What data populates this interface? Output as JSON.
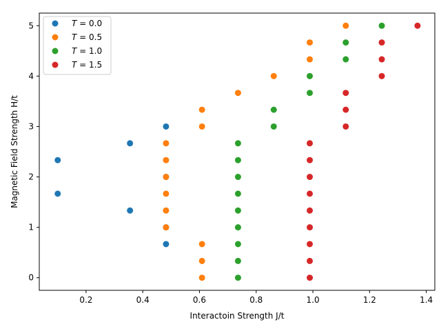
{
  "chart_data": {
    "type": "scatter",
    "title": "",
    "xlabel": "Interactoin Strength J/t",
    "ylabel": "Magnetic Field Strength H/t",
    "xlim": [
      0.035,
      1.43
    ],
    "ylim": [
      -0.25,
      5.25
    ],
    "xticks": [
      0.2,
      0.4,
      0.6,
      0.8,
      1.0,
      1.2,
      1.4
    ],
    "xtick_labels": [
      "0.2",
      "0.4",
      "0.6",
      "0.8",
      "1.0",
      "1.2",
      "1.4"
    ],
    "yticks": [
      0,
      1,
      2,
      3,
      4,
      5
    ],
    "ytick_labels": [
      "0",
      "1",
      "2",
      "3",
      "4",
      "5"
    ],
    "grid": false,
    "legend_position": "top-left",
    "series": [
      {
        "name": "T = 0.0",
        "legend_var": "T",
        "legend_value": " = 0.0",
        "color": "#1f77b4",
        "points": [
          [
            0.1,
            1.667
          ],
          [
            0.1,
            2.333
          ],
          [
            0.355,
            1.333
          ],
          [
            0.355,
            2.667
          ],
          [
            0.482,
            0.667
          ],
          [
            0.482,
            1.0
          ],
          [
            0.482,
            2.0
          ],
          [
            0.482,
            3.0
          ]
        ]
      },
      {
        "name": "T = 0.5",
        "legend_var": "T",
        "legend_value": " = 0.5",
        "color": "#ff7f0e",
        "points": [
          [
            0.482,
            1.0
          ],
          [
            0.482,
            1.333
          ],
          [
            0.482,
            1.667
          ],
          [
            0.482,
            2.0
          ],
          [
            0.482,
            2.333
          ],
          [
            0.482,
            2.667
          ],
          [
            0.609,
            0.0
          ],
          [
            0.609,
            0.333
          ],
          [
            0.609,
            0.667
          ],
          [
            0.609,
            3.0
          ],
          [
            0.609,
            3.333
          ],
          [
            0.736,
            3.667
          ],
          [
            0.862,
            4.0
          ],
          [
            0.989,
            4.333
          ],
          [
            0.989,
            4.667
          ],
          [
            1.116,
            5.0
          ]
        ]
      },
      {
        "name": "T = 1.0",
        "legend_var": "T",
        "legend_value": " = 1.0",
        "color": "#2ca02c",
        "points": [
          [
            0.736,
            0.0
          ],
          [
            0.736,
            0.333
          ],
          [
            0.736,
            0.667
          ],
          [
            0.736,
            1.0
          ],
          [
            0.736,
            1.333
          ],
          [
            0.736,
            1.667
          ],
          [
            0.736,
            2.0
          ],
          [
            0.736,
            2.333
          ],
          [
            0.736,
            2.667
          ],
          [
            0.862,
            3.0
          ],
          [
            0.862,
            3.333
          ],
          [
            0.989,
            3.667
          ],
          [
            0.989,
            4.0
          ],
          [
            1.116,
            4.333
          ],
          [
            1.116,
            4.667
          ],
          [
            1.243,
            5.0
          ]
        ]
      },
      {
        "name": "T = 1.5",
        "legend_var": "T",
        "legend_value": " = 1.5",
        "color": "#d62728",
        "points": [
          [
            0.989,
            0.0
          ],
          [
            0.989,
            0.333
          ],
          [
            0.989,
            0.667
          ],
          [
            0.989,
            1.0
          ],
          [
            0.989,
            1.333
          ],
          [
            0.989,
            1.667
          ],
          [
            0.989,
            2.0
          ],
          [
            0.989,
            2.333
          ],
          [
            0.989,
            2.667
          ],
          [
            1.116,
            3.0
          ],
          [
            1.116,
            3.333
          ],
          [
            1.116,
            3.667
          ],
          [
            1.243,
            4.0
          ],
          [
            1.243,
            4.333
          ],
          [
            1.243,
            4.667
          ],
          [
            1.369,
            5.0
          ]
        ]
      }
    ]
  }
}
